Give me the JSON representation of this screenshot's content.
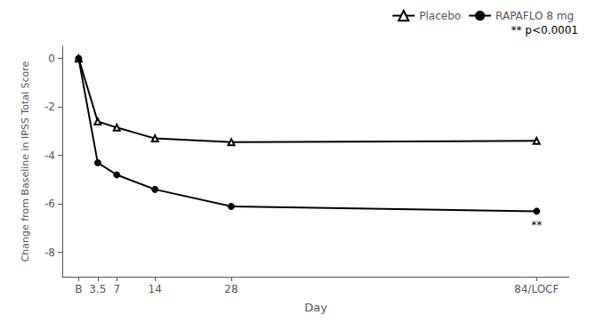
{
  "chart_data": {
    "type": "line",
    "xlabel": "Day",
    "ylabel": "Change from Baseline in IPSS Total Score",
    "x": [
      0,
      3.5,
      7,
      14,
      28,
      84
    ],
    "series": [
      {
        "name": "Placebo",
        "color": "#000000",
        "marker": "open_triangle",
        "values": [
          0.0,
          -2.6,
          -2.85,
          -3.3,
          -3.45,
          -3.4
        ]
      },
      {
        "name": "RAPAFLO 8 mg",
        "color": "#000000",
        "marker": "circle",
        "values": [
          0.0,
          -4.3,
          -4.8,
          -5.4,
          -6.1,
          -6.3
        ]
      }
    ],
    "xlim": [
      -3,
      90
    ],
    "xticks": [
      {
        "value": 0,
        "label": "B"
      },
      3.5,
      7,
      14,
      28,
      {
        "value": 84,
        "label": "84/LOCF"
      }
    ],
    "ylim": [
      -9.0,
      0.5
    ],
    "yticks": [
      0,
      -2,
      -4,
      -6,
      -8
    ],
    "grid": false,
    "legend": "upper right",
    "annotations": [
      {
        "text": "**",
        "series": "RAPAFLO 8 mg",
        "x": 84
      },
      {
        "text": "** p<0.0001"
      }
    ]
  }
}
